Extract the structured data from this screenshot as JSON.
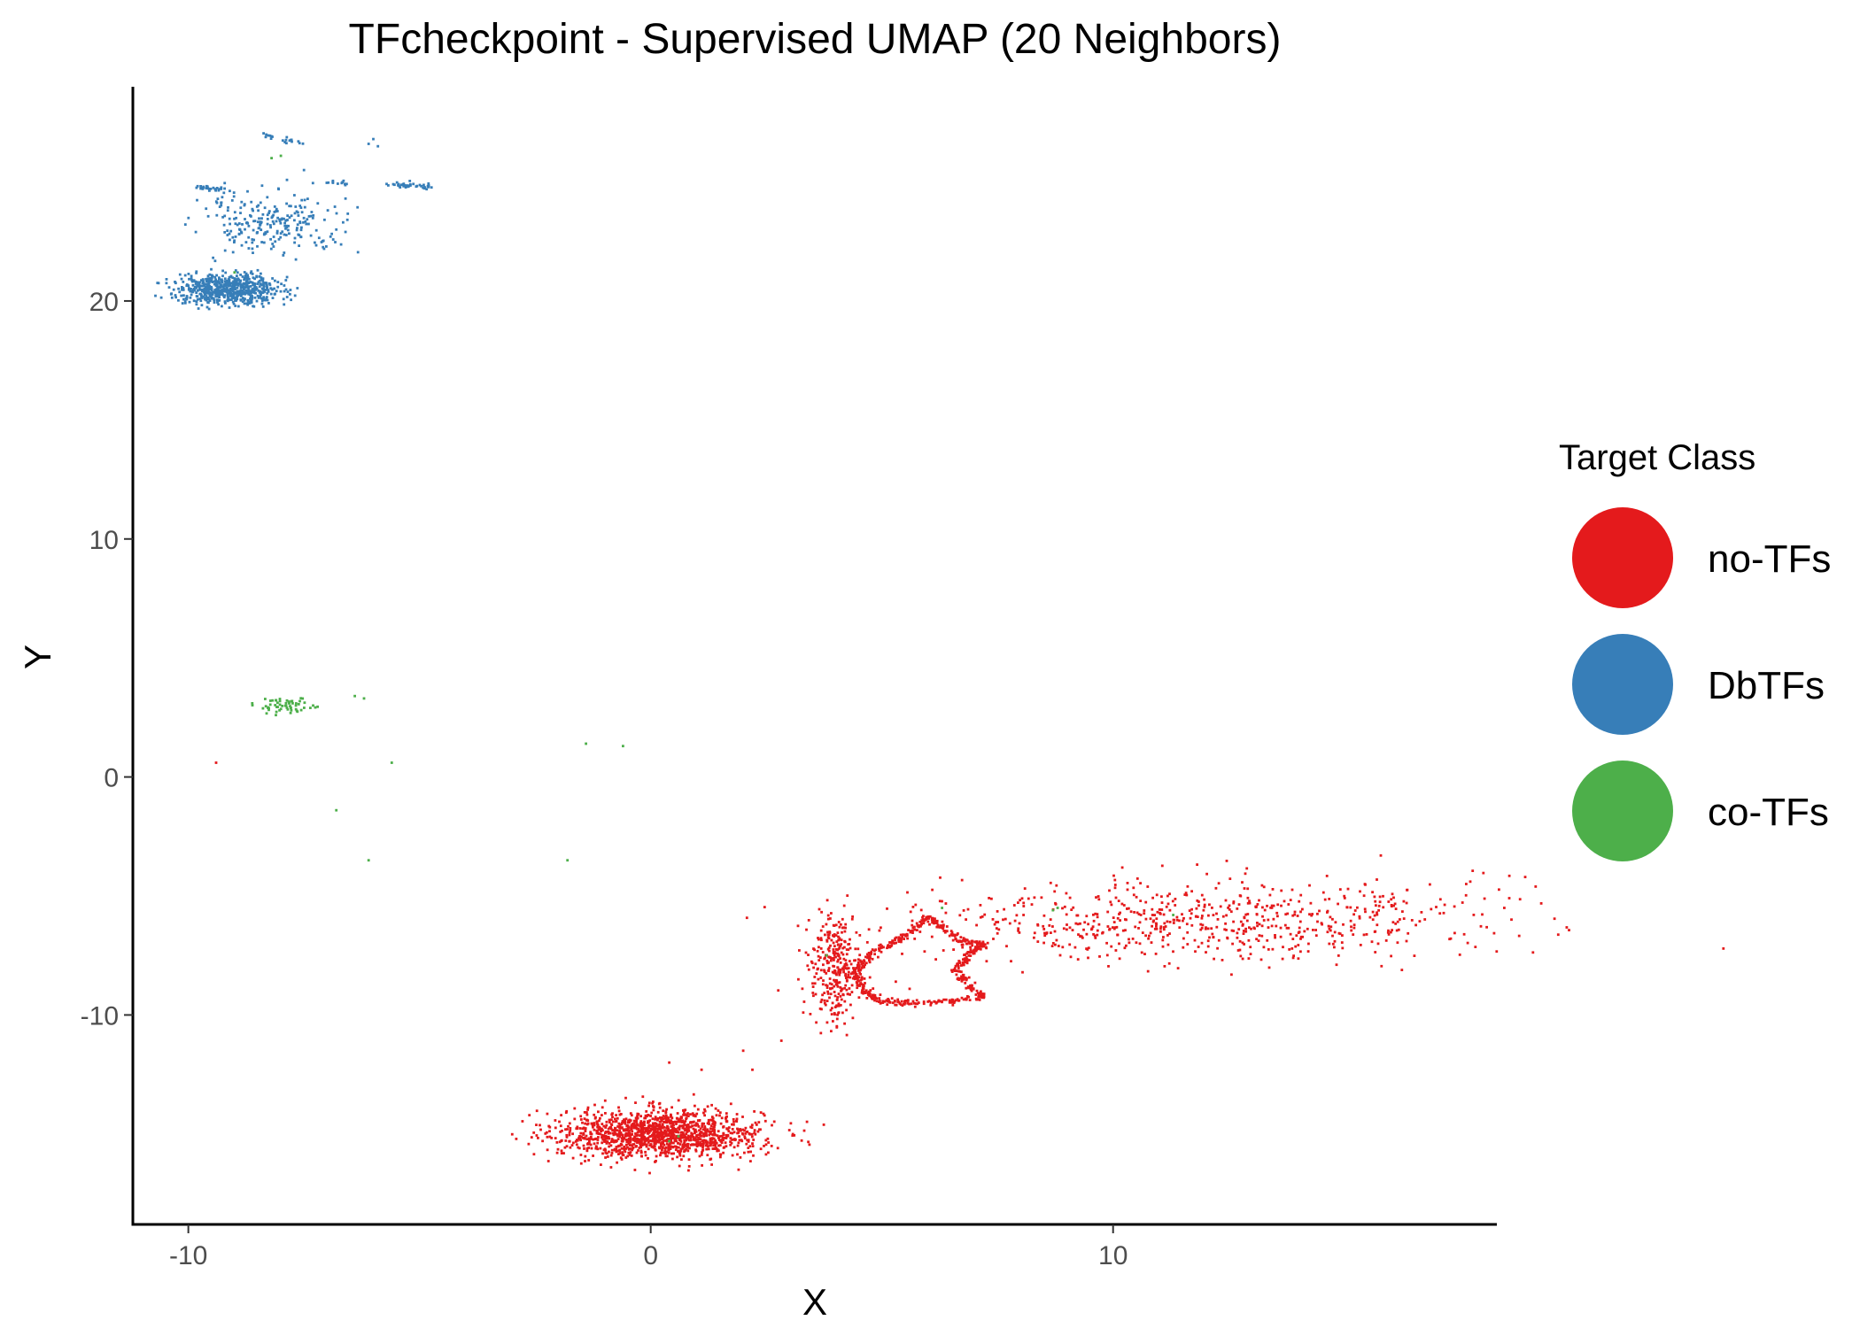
{
  "chart_data": {
    "type": "scatter",
    "title": "TFcheckpoint - Supervised UMAP (20 Neighbors)",
    "xlabel": "X",
    "ylabel": "Y",
    "xlim": [
      -11.2,
      18.3
    ],
    "ylim": [
      -18.8,
      29.0
    ],
    "xticks": [
      -10,
      0,
      10
    ],
    "yticks": [
      -10,
      0,
      10,
      20
    ],
    "grid": false,
    "legend": {
      "title": "Target Class",
      "placement": "right",
      "entries": [
        "no-TFs",
        "DbTFs",
        "co-TFs"
      ]
    },
    "series": [
      {
        "name": "no-TFs",
        "color": "#E41A1C",
        "clusters": [
          {
            "shape": "blob",
            "center": [
              0.2,
              -15.0
            ],
            "spread": [
              1.1,
              0.5
            ],
            "n": 1400
          },
          {
            "shape": "blob",
            "center": [
              4.0,
              -8.0
            ],
            "spread": [
              0.3,
              1.1
            ],
            "n": 320
          },
          {
            "shape": "loop",
            "path": [
              [
                4.8,
                -7.4
              ],
              [
                5.4,
                -6.8
              ],
              [
                6.0,
                -5.9
              ],
              [
                6.3,
                -6.3
              ],
              [
                6.7,
                -6.9
              ],
              [
                7.2,
                -7.0
              ],
              [
                6.9,
                -7.4
              ],
              [
                6.6,
                -8.1
              ],
              [
                6.9,
                -8.8
              ],
              [
                7.2,
                -9.3
              ],
              [
                6.5,
                -9.4
              ],
              [
                5.6,
                -9.5
              ],
              [
                4.9,
                -9.4
              ],
              [
                4.6,
                -8.9
              ],
              [
                4.4,
                -8.2
              ],
              [
                4.8,
                -7.4
              ]
            ],
            "n": 560
          },
          {
            "shape": "blob",
            "center": [
              12.0,
              -6.0
            ],
            "spread": [
              3.0,
              0.9
            ],
            "n": 700
          },
          {
            "shape": "points",
            "points": [
              [
                -9.4,
                0.6
              ],
              [
                2.0,
                -11.5
              ],
              [
                2.2,
                -12.3
              ],
              [
                1.1,
                -12.3
              ],
              [
                0.4,
                -12.0
              ],
              [
                2.2,
                -15.4
              ],
              [
                1.9,
                -16.5
              ],
              [
                3.3,
                -9.9
              ],
              [
                5.3,
                -8.6
              ],
              [
                5.6,
                -8.9
              ]
            ]
          }
        ]
      },
      {
        "name": "DbTFs",
        "color": "#377EB8",
        "clusters": [
          {
            "shape": "blob",
            "center": [
              -9.1,
              20.5
            ],
            "spread": [
              0.55,
              0.3
            ],
            "n": 700
          },
          {
            "shape": "blob",
            "center": [
              -8.2,
              23.3
            ],
            "spread": [
              0.8,
              0.6
            ],
            "n": 240
          },
          {
            "shape": "line",
            "from": [
              -9.8,
              24.8
            ],
            "to": [
              -9.0,
              24.6
            ],
            "n": 30
          },
          {
            "shape": "line",
            "from": [
              -5.6,
              24.9
            ],
            "to": [
              -4.8,
              24.8
            ],
            "n": 40
          },
          {
            "shape": "line",
            "from": [
              -8.4,
              27.0
            ],
            "to": [
              -7.5,
              26.6
            ],
            "n": 20
          },
          {
            "shape": "line",
            "from": [
              -7.0,
              25.0
            ],
            "to": [
              -6.5,
              24.9
            ],
            "n": 12
          },
          {
            "shape": "points",
            "points": [
              [
                -6.0,
                26.8
              ],
              [
                -6.1,
                26.6
              ],
              [
                -5.9,
                26.5
              ],
              [
                -7.5,
                25.5
              ],
              [
                -7.2,
                24.1
              ],
              [
                -6.6,
                24.3
              ],
              [
                -6.8,
                23.0
              ],
              [
                -6.6,
                22.9
              ]
            ]
          }
        ]
      },
      {
        "name": "co-TFs",
        "color": "#4DAF4A",
        "clusters": [
          {
            "shape": "blob",
            "center": [
              -7.9,
              3.0
            ],
            "spread": [
              0.3,
              0.18
            ],
            "n": 60
          },
          {
            "shape": "points",
            "points": [
              [
                -6.4,
                3.4
              ],
              [
                -6.2,
                3.3
              ],
              [
                -5.6,
                0.6
              ],
              [
                -1.4,
                1.4
              ],
              [
                -0.6,
                1.3
              ],
              [
                -6.8,
                -1.4
              ],
              [
                -6.1,
                -3.5
              ],
              [
                -1.8,
                -3.5
              ],
              [
                -8.2,
                26.0
              ],
              [
                -8.0,
                26.1
              ],
              [
                -9.0,
                21.2
              ],
              [
                8.8,
                -5.5
              ],
              [
                8.7,
                -5.6
              ],
              [
                6.3,
                -5.5
              ],
              [
                11.3,
                -5.8
              ],
              [
                0.4,
                -15.3
              ],
              [
                0.6,
                -15.1
              ],
              [
                3.8,
                -7.5
              ]
            ]
          }
        ]
      }
    ]
  }
}
